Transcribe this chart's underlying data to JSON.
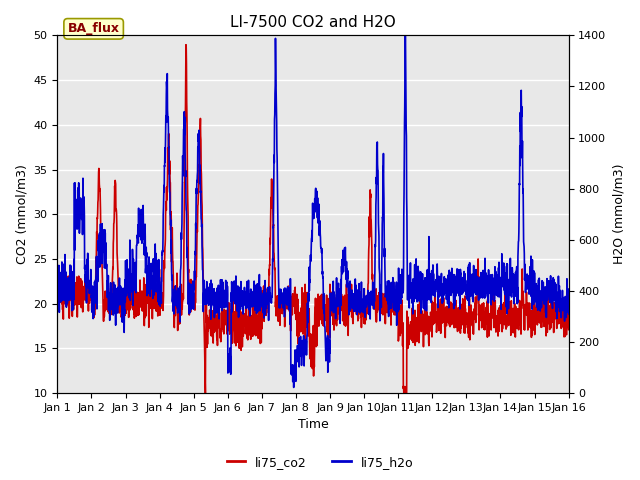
{
  "title": "LI-7500 CO2 and H2O",
  "xlabel": "Time",
  "ylabel_left": "CO2 (mmol/m3)",
  "ylabel_right": "H2O (mmol/m3)",
  "ylim_left": [
    10,
    50
  ],
  "ylim_right": [
    0,
    1400
  ],
  "yticks_left": [
    10,
    15,
    20,
    25,
    30,
    35,
    40,
    45,
    50
  ],
  "yticks_right": [
    0,
    200,
    400,
    600,
    800,
    1000,
    1200,
    1400
  ],
  "xticklabels": [
    "Jan 1",
    "Jan 2",
    "Jan 3",
    "Jan 4",
    "Jan 5",
    "Jan 6",
    "Jan 7",
    "Jan 8",
    "Jan 9",
    "Jan 10",
    "Jan 11",
    "Jan 12",
    "Jan 13",
    "Jan 14",
    "Jan 15",
    "Jan 16"
  ],
  "co2_color": "#cc0000",
  "h2o_color": "#0000cc",
  "annotation_text": "BA_flux",
  "annotation_bg": "#ffffcc",
  "annotation_border": "#999900",
  "annotation_textcolor": "#880000",
  "bg_color": "#e8e8e8",
  "legend_co2": "li75_co2",
  "legend_h2o": "li75_h2o",
  "title_fontsize": 11,
  "axis_fontsize": 9,
  "tick_fontsize": 8,
  "linewidth": 1.2
}
